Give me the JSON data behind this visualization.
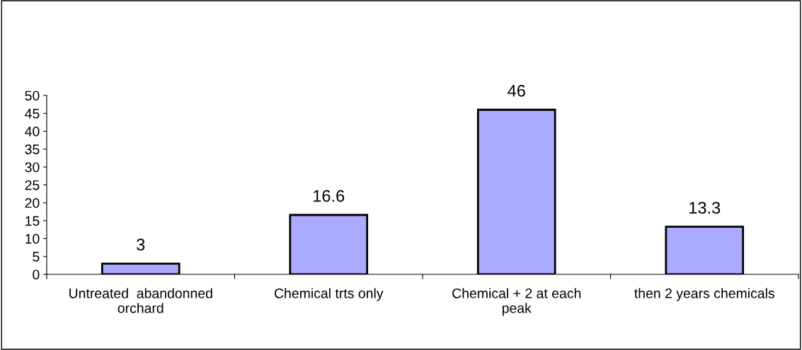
{
  "chart_data": {
    "type": "bar",
    "categories": [
      "Untreated  abandonned orchard",
      "Chemical trts only",
      "Chemical + 2 at each peak",
      "then 2 years chemicals"
    ],
    "values": [
      3,
      16.6,
      46,
      13.3
    ],
    "color": "#aaaaff",
    "ylim": [
      0,
      50
    ],
    "yticks": [
      0,
      5,
      10,
      15,
      20,
      25,
      30,
      35,
      40,
      45,
      50
    ],
    "data_labels": true,
    "grid": false,
    "legend": false
  }
}
